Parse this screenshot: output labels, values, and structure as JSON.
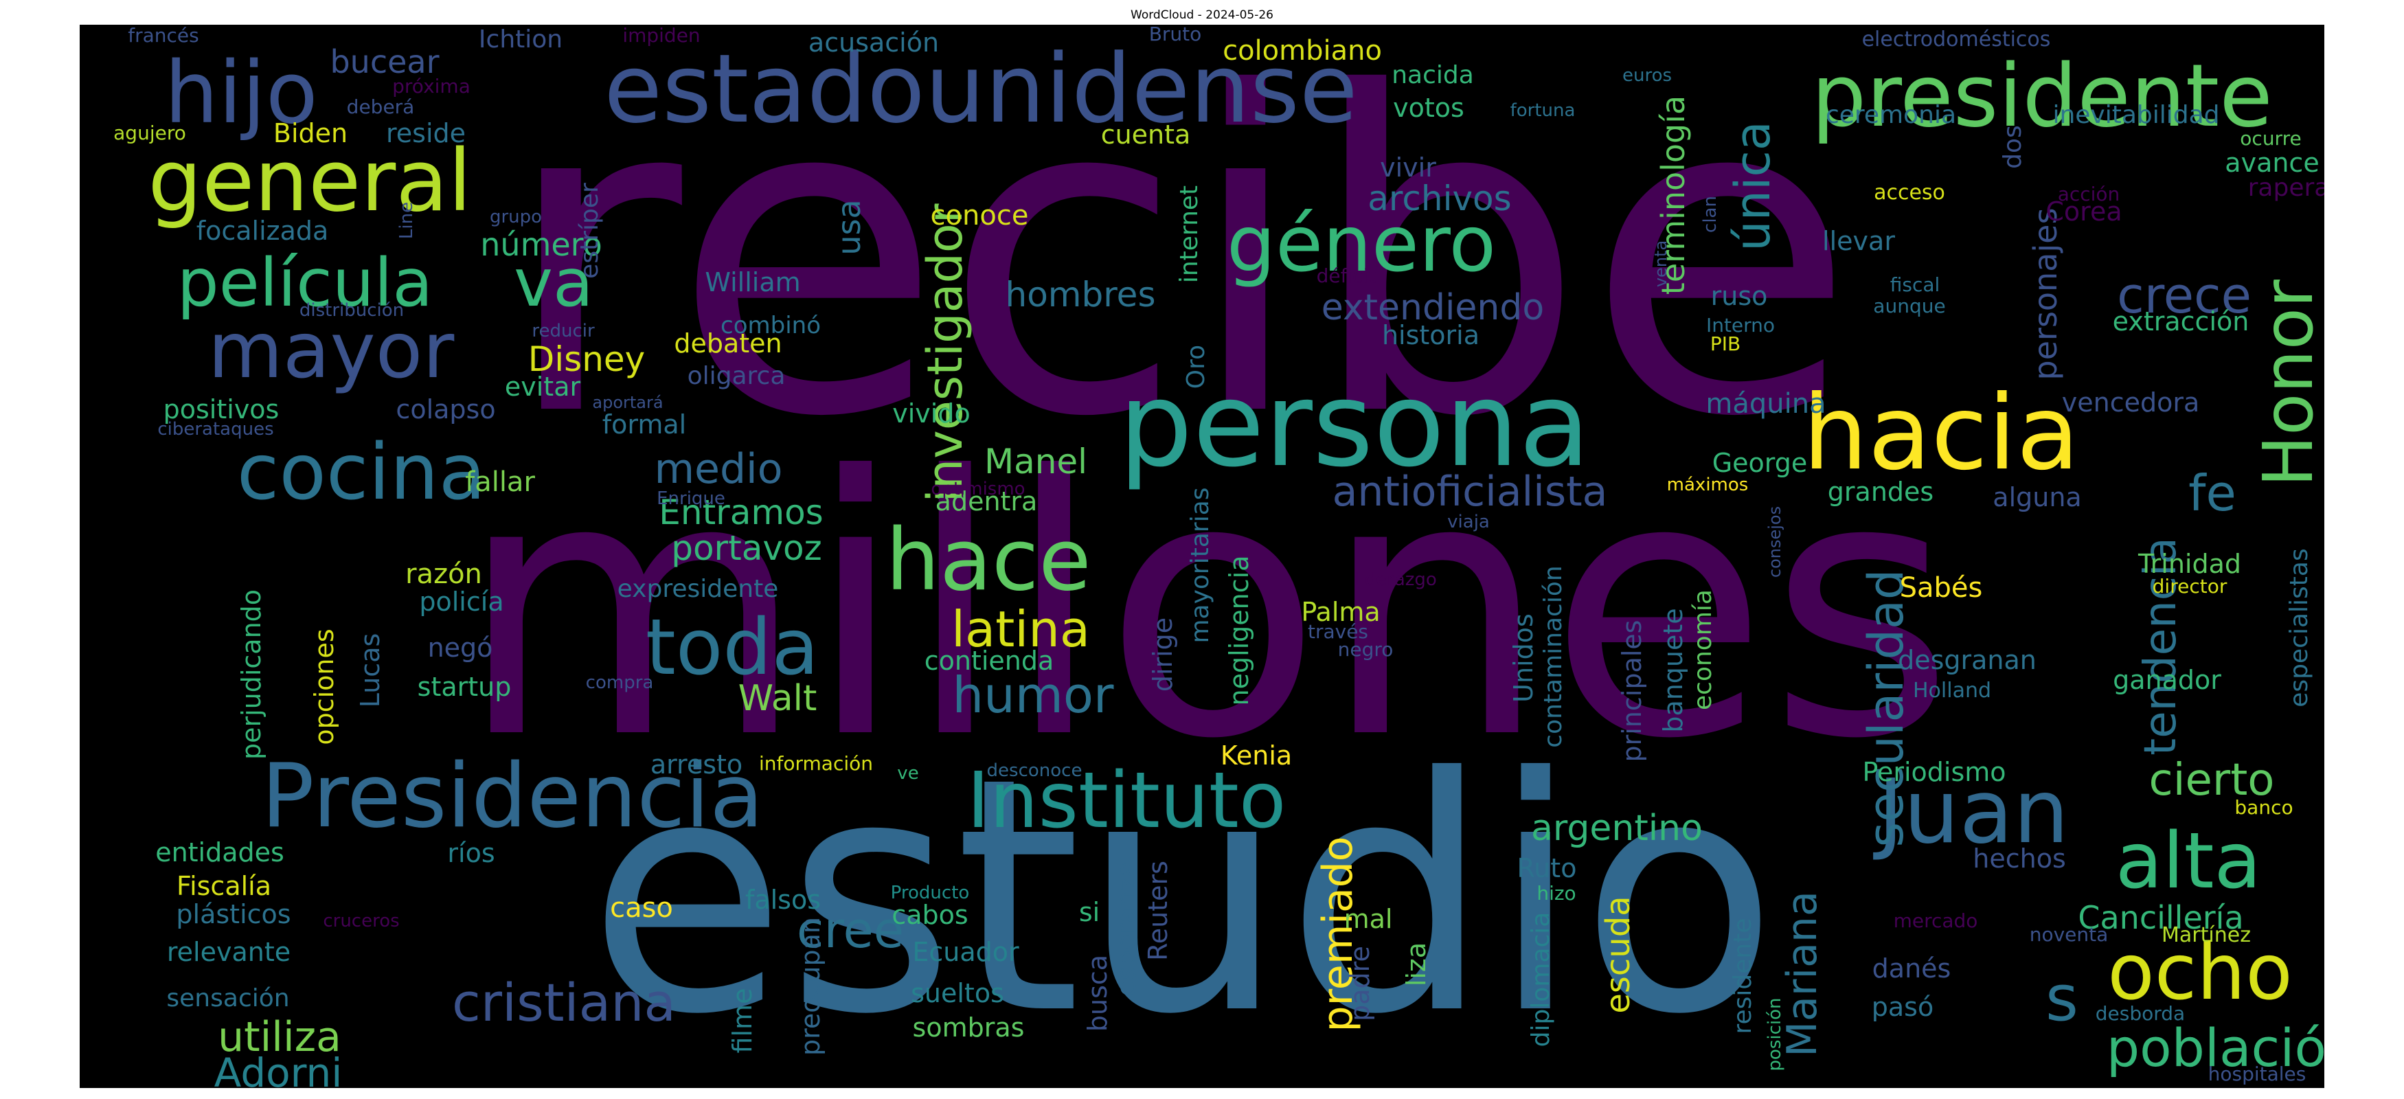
{
  "title": "WordCloud - 2024-05-26",
  "colors": {
    "background": "#000000",
    "title": "#000000"
  },
  "words": [
    {
      "text": "recibe",
      "color": "#440154"
    },
    {
      "text": "millones",
      "color": "#440154"
    },
    {
      "text": "estudio",
      "color": "#31688e"
    },
    {
      "text": "persona",
      "color": "#2a9d8f"
    },
    {
      "text": "estadounidense",
      "color": "#3b528b"
    },
    {
      "text": "Presidencia",
      "color": "#31688e"
    },
    {
      "text": "Instituto",
      "color": "#21918c"
    },
    {
      "text": "presidente",
      "color": "#5ec962"
    },
    {
      "text": "general",
      "color": "#b5de2b"
    },
    {
      "text": "hacia",
      "color": "#fde725"
    },
    {
      "text": "hijo",
      "color": "#3b528b"
    },
    {
      "text": "mayor",
      "color": "#3b528b"
    },
    {
      "text": "cocina",
      "color": "#2c728e"
    },
    {
      "text": "hace",
      "color": "#5ec962"
    },
    {
      "text": "Honor",
      "color": "#5ec962"
    },
    {
      "text": "género",
      "color": "#35b779"
    },
    {
      "text": "película",
      "color": "#35b779"
    },
    {
      "text": "va",
      "color": "#35b779"
    },
    {
      "text": "toda",
      "color": "#2c728e"
    },
    {
      "text": "Juan",
      "color": "#31688e"
    },
    {
      "text": "alta",
      "color": "#35b779"
    },
    {
      "text": "ocho",
      "color": "#d8e219"
    },
    {
      "text": "investigador",
      "color": "#7ad151"
    },
    {
      "text": "secularidad",
      "color": "#2c728e"
    },
    {
      "text": "cristiana",
      "color": "#3b528b"
    },
    {
      "text": "población",
      "color": "#35b779"
    },
    {
      "text": "latina",
      "color": "#d8e219"
    },
    {
      "text": "humor",
      "color": "#2c728e"
    },
    {
      "text": "única",
      "color": "#26828e"
    },
    {
      "text": "cree",
      "color": "#2c728e"
    },
    {
      "text": "crece",
      "color": "#3b528b"
    },
    {
      "text": "medio",
      "color": "#31688e"
    },
    {
      "text": "tendencia",
      "color": "#2c728e"
    },
    {
      "text": "cierto",
      "color": "#5ec962"
    },
    {
      "text": "antioficialista",
      "color": "#3b528b"
    },
    {
      "text": "premiado",
      "color": "#fde725"
    },
    {
      "text": "utiliza",
      "color": "#7ad151"
    },
    {
      "text": "Adorni",
      "color": "#26828e"
    },
    {
      "text": "Mariana",
      "color": "#2c728e"
    },
    {
      "text": "fe",
      "color": "#2c728e"
    },
    {
      "text": "s",
      "color": "#2c728e"
    },
    {
      "text": "archivos",
      "color": "#2c728e"
    },
    {
      "text": "extendiendo",
      "color": "#3b528b"
    },
    {
      "text": "hombres",
      "color": "#2c728e"
    },
    {
      "text": "Disney",
      "color": "#d8e219"
    },
    {
      "text": "Manel",
      "color": "#5ec962"
    },
    {
      "text": "Entramos",
      "color": "#35b779"
    },
    {
      "text": "portavoz",
      "color": "#35b779"
    },
    {
      "text": "Walt",
      "color": "#7ad151"
    },
    {
      "text": "argentino",
      "color": "#35b779"
    },
    {
      "text": "escuda",
      "color": "#d8e219"
    },
    {
      "text": "personajes",
      "color": "#3b528b"
    },
    {
      "text": "terminología",
      "color": "#5ec962"
    },
    {
      "text": "número",
      "color": "#35b779"
    },
    {
      "text": "usa",
      "color": "#2c728e"
    },
    {
      "text": "bucear",
      "color": "#3b528b"
    },
    {
      "text": "colombiano",
      "color": "#d8e219"
    },
    {
      "text": "Cancillería",
      "color": "#35b779"
    },
    {
      "text": "Fiscalía",
      "color": "#d8e219"
    },
    {
      "text": "sensación",
      "color": "#2c728e"
    },
    {
      "text": "relevante",
      "color": "#26828e"
    },
    {
      "text": "plásticos",
      "color": "#2c728e"
    },
    {
      "text": "entidades",
      "color": "#35b779"
    },
    {
      "text": "ríos",
      "color": "#26828e"
    },
    {
      "text": "caso",
      "color": "#fde725"
    },
    {
      "text": "falsos",
      "color": "#26828e"
    },
    {
      "text": "cabos",
      "color": "#35b779"
    },
    {
      "text": "Ecuador",
      "color": "#26828e"
    },
    {
      "text": "sueltos",
      "color": "#26828e"
    },
    {
      "text": "sombras",
      "color": "#5ec962"
    },
    {
      "text": "filme",
      "color": "#26828e"
    },
    {
      "text": "preocupan",
      "color": "#31688e"
    },
    {
      "text": "Reuters",
      "color": "#3b528b"
    },
    {
      "text": "busca",
      "color": "#3b528b"
    },
    {
      "text": "esperanza",
      "color": "#31688e"
    },
    {
      "text": "si",
      "color": "#35b779"
    },
    {
      "text": "padre",
      "color": "#3b528b"
    },
    {
      "text": "liza",
      "color": "#5ec962"
    },
    {
      "text": "mal",
      "color": "#7ad151"
    },
    {
      "text": "diplomacia",
      "color": "#26828e"
    },
    {
      "text": "Ruto",
      "color": "#2c728e"
    },
    {
      "text": "Kenia",
      "color": "#fde725"
    },
    {
      "text": "Palma",
      "color": "#b5de2b"
    },
    {
      "text": "negligencia",
      "color": "#35b779"
    },
    {
      "text": "mayoritarias",
      "color": "#2c728e"
    },
    {
      "text": "dirige",
      "color": "#3b528b"
    },
    {
      "text": "contienda",
      "color": "#35b779"
    },
    {
      "text": "adentra",
      "color": "#5ec962"
    },
    {
      "text": "vivido",
      "color": "#35b779"
    },
    {
      "text": "Oro",
      "color": "#2c728e"
    },
    {
      "text": "internet",
      "color": "#35b779"
    },
    {
      "text": "conoce",
      "color": "#d8e219"
    },
    {
      "text": "cuenta",
      "color": "#b5de2b"
    },
    {
      "text": "combinó",
      "color": "#2c728e"
    },
    {
      "text": "William",
      "color": "#2c728e"
    },
    {
      "text": "debaten",
      "color": "#d8e219"
    },
    {
      "text": "oligarca",
      "color": "#3b528b"
    },
    {
      "text": "evitar",
      "color": "#35b779"
    },
    {
      "text": "formal",
      "color": "#2c728e"
    },
    {
      "text": "colapso",
      "color": "#3b528b"
    },
    {
      "text": "positivos",
      "color": "#35b779"
    },
    {
      "text": "ciberataques",
      "color": "#3b528b"
    },
    {
      "text": "fallar",
      "color": "#7ad151"
    },
    {
      "text": "razón",
      "color": "#b5de2b"
    },
    {
      "text": "policía",
      "color": "#26828e"
    },
    {
      "text": "expresidente",
      "color": "#2c728e"
    },
    {
      "text": "negó",
      "color": "#3b528b"
    },
    {
      "text": "startup",
      "color": "#35b779"
    },
    {
      "text": "perjudicando",
      "color": "#35b779"
    },
    {
      "text": "opciones",
      "color": "#d8e219"
    },
    {
      "text": "Lucas",
      "color": "#31688e"
    },
    {
      "text": "arresto",
      "color": "#2c728e"
    },
    {
      "text": "información",
      "color": "#d8e219"
    },
    {
      "text": "ve",
      "color": "#35b779"
    },
    {
      "text": "desconoce",
      "color": "#31688e"
    },
    {
      "text": "compra",
      "color": "#3b528b"
    },
    {
      "text": "Producto",
      "color": "#21918c"
    },
    {
      "text": "cruceros",
      "color": "#440154"
    },
    {
      "text": "Enrique",
      "color": "#3b528b"
    },
    {
      "text": "optimismo",
      "color": "#440154"
    },
    {
      "text": "aportará",
      "color": "#3b528b"
    },
    {
      "text": "reducir",
      "color": "#3b528b"
    },
    {
      "text": "distribución",
      "color": "#3b528b"
    },
    {
      "text": "focalizada",
      "color": "#2c728e"
    },
    {
      "text": "Biden",
      "color": "#d8e219"
    },
    {
      "text": "reside",
      "color": "#2c728e"
    },
    {
      "text": "agujero",
      "color": "#b5de2b"
    },
    {
      "text": "Ichtion",
      "color": "#3b528b"
    },
    {
      "text": "acusación",
      "color": "#2c728e"
    },
    {
      "text": "impiden",
      "color": "#440154"
    },
    {
      "text": "francés",
      "color": "#3b528b"
    },
    {
      "text": "próxima",
      "color": "#440154"
    },
    {
      "text": "deberá",
      "color": "#3b528b"
    },
    {
      "text": "grupo",
      "color": "#3b528b"
    },
    {
      "text": "Line",
      "color": "#3b528b"
    },
    {
      "text": "estríper",
      "color": "#3b528b"
    },
    {
      "text": "Bruto",
      "color": "#3b528b"
    },
    {
      "text": "nacida",
      "color": "#35b779"
    },
    {
      "text": "votos",
      "color": "#35b779"
    },
    {
      "text": "fortuna",
      "color": "#2c728e"
    },
    {
      "text": "euros",
      "color": "#2c728e"
    },
    {
      "text": "vivir",
      "color": "#3b528b"
    },
    {
      "text": "historia",
      "color": "#2c728e"
    },
    {
      "text": "máquina",
      "color": "#2c728e"
    },
    {
      "text": "George",
      "color": "#35b779"
    },
    {
      "text": "grandes",
      "color": "#35b779"
    },
    {
      "text": "máximos",
      "color": "#fde725"
    },
    {
      "text": "viaja",
      "color": "#3b528b"
    },
    {
      "text": "liderazgo",
      "color": "#440154"
    },
    {
      "text": "través",
      "color": "#3b528b"
    },
    {
      "text": "negro",
      "color": "#3b528b"
    },
    {
      "text": "Unidos",
      "color": "#2c728e"
    },
    {
      "text": "contaminación",
      "color": "#2c728e"
    },
    {
      "text": "principales",
      "color": "#3b528b"
    },
    {
      "text": "banquete",
      "color": "#2c728e"
    },
    {
      "text": "economía",
      "color": "#5ec962"
    },
    {
      "text": "ruso",
      "color": "#2c728e"
    },
    {
      "text": "Interno",
      "color": "#2c728e"
    },
    {
      "text": "PIB",
      "color": "#d8e219"
    },
    {
      "text": "clan",
      "color": "#3b528b"
    },
    {
      "text": "venta",
      "color": "#3b528b"
    },
    {
      "text": "déficit",
      "color": "#440154"
    },
    {
      "text": "fiscal",
      "color": "#2c728e"
    },
    {
      "text": "aunque",
      "color": "#2c728e"
    },
    {
      "text": "acceso",
      "color": "#d8e219"
    },
    {
      "text": "llevar",
      "color": "#2c728e"
    },
    {
      "text": "ceremonia",
      "color": "#2c728e"
    },
    {
      "text": "dos",
      "color": "#3b528b"
    },
    {
      "text": "inevitabilidad",
      "color": "#2c728e"
    },
    {
      "text": "electrodomésticos",
      "color": "#3b528b"
    },
    {
      "text": "avance",
      "color": "#35b779"
    },
    {
      "text": "ocurre",
      "color": "#5ec962"
    },
    {
      "text": "rapera",
      "color": "#440154"
    },
    {
      "text": "acción",
      "color": "#440154"
    },
    {
      "text": "Corea",
      "color": "#440154"
    },
    {
      "text": "extracción",
      "color": "#35b779"
    },
    {
      "text": "vencedora",
      "color": "#3b528b"
    },
    {
      "text": "alguna",
      "color": "#3b528b"
    },
    {
      "text": "Trinidad",
      "color": "#5ec962"
    },
    {
      "text": "director",
      "color": "#d8e219"
    },
    {
      "text": "especialistas",
      "color": "#2c728e"
    },
    {
      "text": "Sabés",
      "color": "#fde725"
    },
    {
      "text": "consejos",
      "color": "#3b528b"
    },
    {
      "text": "desgranan",
      "color": "#2c728e"
    },
    {
      "text": "Holland",
      "color": "#2c728e"
    },
    {
      "text": "ganador",
      "color": "#35b779"
    },
    {
      "text": "Periodismo",
      "color": "#35b779"
    },
    {
      "text": "hechos",
      "color": "#3b528b"
    },
    {
      "text": "banco",
      "color": "#d8e219"
    },
    {
      "text": "hizo",
      "color": "#35b779"
    },
    {
      "text": "residente",
      "color": "#2c728e"
    },
    {
      "text": "mercado",
      "color": "#440154"
    },
    {
      "text": "danés",
      "color": "#3b528b"
    },
    {
      "text": "pasó",
      "color": "#2c728e"
    },
    {
      "text": "posición",
      "color": "#35b779"
    },
    {
      "text": "desborda",
      "color": "#2c728e"
    },
    {
      "text": "noventa",
      "color": "#3b528b"
    },
    {
      "text": "Martínez",
      "color": "#b5de2b"
    },
    {
      "text": "hospitales",
      "color": "#3b528b"
    }
  ]
}
